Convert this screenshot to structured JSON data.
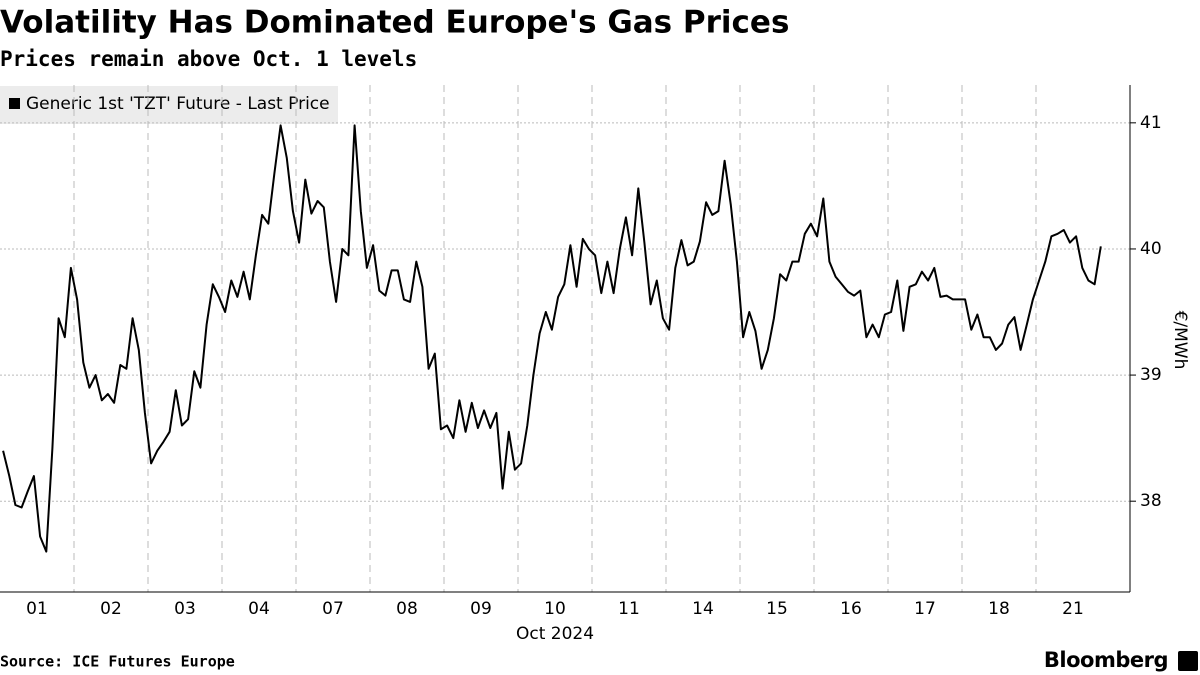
{
  "title": "Volatility Has Dominated Europe's Gas Prices",
  "subtitle": "Prices remain above Oct. 1 levels",
  "source": "Source: ICE Futures Europe",
  "brand": "Bloomberg",
  "chart_data": {
    "type": "line",
    "categories": [
      "01",
      "02",
      "03",
      "04",
      "07",
      "08",
      "09",
      "10",
      "11",
      "14",
      "15",
      "16",
      "17",
      "18",
      "21"
    ],
    "xlabel": "Oct 2024",
    "ylabel": "€/MWh",
    "ylim": [
      37.28,
      41.3
    ],
    "yticks": [
      38,
      39,
      40,
      41
    ],
    "grid": true,
    "series": [
      {
        "name": "Generic 1st 'TZT' Future - Last Price",
        "color": "#000000",
        "values": [
          [
            38.4,
            38.2,
            37.97,
            37.95,
            38.08,
            38.2,
            37.72,
            37.6,
            38.42,
            39.45,
            39.3,
            39.85
          ],
          [
            39.6,
            39.1,
            38.9,
            39.0,
            38.8,
            38.85,
            38.78,
            39.08,
            39.05,
            39.45,
            39.2,
            38.7
          ],
          [
            38.3,
            38.4,
            38.47,
            38.55,
            38.88,
            38.6,
            38.65,
            39.03,
            38.9,
            39.4,
            39.72,
            39.62
          ],
          [
            39.5,
            39.75,
            39.62,
            39.82,
            39.6,
            39.95,
            40.27,
            40.2,
            40.6,
            40.98,
            40.72,
            40.3
          ],
          [
            40.05,
            40.55,
            40.28,
            40.38,
            40.33,
            39.9,
            39.58,
            40.0,
            39.95,
            40.98,
            40.3,
            39.85
          ],
          [
            40.03,
            39.67,
            39.63,
            39.83,
            39.83,
            39.6,
            39.58,
            39.9,
            39.7,
            39.05,
            39.17,
            38.57
          ],
          [
            38.6,
            38.5,
            38.8,
            38.55,
            38.78,
            38.58,
            38.72,
            38.58,
            38.7,
            38.1,
            38.55,
            38.25
          ],
          [
            38.3,
            38.6,
            39.0,
            39.33,
            39.5,
            39.36,
            39.62,
            39.72,
            40.03,
            39.7,
            40.08,
            40.0
          ],
          [
            39.95,
            39.65,
            39.9,
            39.65,
            40.0,
            40.25,
            39.95,
            40.48,
            40.05,
            39.56,
            39.75,
            39.45
          ],
          [
            39.36,
            39.85,
            40.07,
            39.87,
            39.9,
            40.06,
            40.37,
            40.27,
            40.3,
            40.7,
            40.35,
            39.9
          ],
          [
            39.3,
            39.5,
            39.35,
            39.05,
            39.2,
            39.45,
            39.8,
            39.75,
            39.9,
            39.9,
            40.12,
            40.2
          ],
          [
            40.1,
            40.4,
            39.9,
            39.78,
            39.72,
            39.66,
            39.63,
            39.67,
            39.3,
            39.4,
            39.3,
            39.48
          ],
          [
            39.5,
            39.75,
            39.35,
            39.7,
            39.72,
            39.82,
            39.75,
            39.85,
            39.62,
            39.63,
            39.6,
            39.6
          ],
          [
            39.6,
            39.36,
            39.48,
            39.3,
            39.3,
            39.2,
            39.25,
            39.4,
            39.46,
            39.2,
            39.4,
            39.6
          ],
          [
            39.75,
            39.9,
            40.1,
            40.12,
            40.15,
            40.05,
            40.1,
            39.85,
            39.75,
            39.72,
            40.02,
            null
          ]
        ]
      }
    ]
  }
}
